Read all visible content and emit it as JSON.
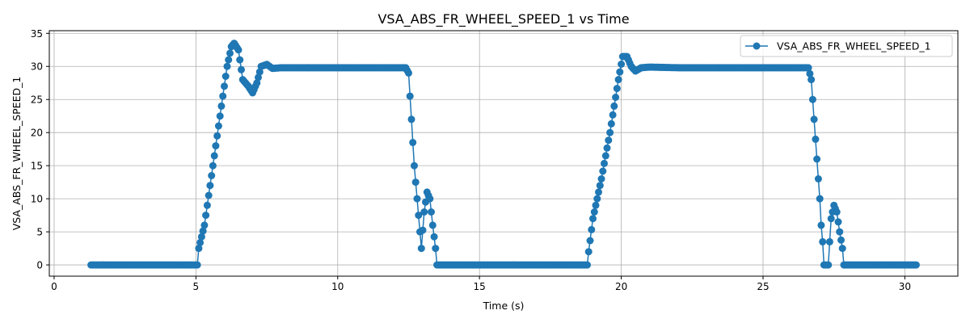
{
  "chart_data": {
    "type": "line",
    "title": "VSA_ABS_FR_WHEEL_SPEED_1 vs Time",
    "xlabel": "Time (s)",
    "ylabel": "VSA_ABS_FR_WHEEL_SPEED_1",
    "xlim": [
      -0.17,
      31.87
    ],
    "ylim": [
      -1.7,
      35.4
    ],
    "xticks": [
      0,
      5,
      10,
      15,
      20,
      25,
      30
    ],
    "yticks": [
      0,
      5,
      10,
      15,
      20,
      25,
      30,
      35
    ],
    "grid": true,
    "legend_position": "top-right",
    "colors": {
      "series": "#1f77b4",
      "grid": "#b0b0b0",
      "axes": "#000000"
    },
    "series": [
      {
        "name": "VSA_ABS_FR_WHEEL_SPEED_1",
        "marker": "circle",
        "points": [
          [
            1.3,
            0
          ],
          [
            5.05,
            0
          ],
          [
            5.1,
            2.5
          ],
          [
            5.3,
            6
          ],
          [
            5.6,
            15
          ],
          [
            5.9,
            24
          ],
          [
            6.1,
            30
          ],
          [
            6.25,
            33
          ],
          [
            6.35,
            33.5
          ],
          [
            6.5,
            32.5
          ],
          [
            6.65,
            28
          ],
          [
            6.85,
            27
          ],
          [
            7.0,
            26
          ],
          [
            7.15,
            27.5
          ],
          [
            7.3,
            30
          ],
          [
            7.5,
            30.3
          ],
          [
            7.7,
            29.7
          ],
          [
            8.0,
            29.8
          ],
          [
            9.0,
            29.8
          ],
          [
            12.4,
            29.8
          ],
          [
            12.5,
            29
          ],
          [
            12.6,
            22
          ],
          [
            12.7,
            15
          ],
          [
            12.8,
            10
          ],
          [
            12.9,
            5
          ],
          [
            12.95,
            2.5
          ],
          [
            13.05,
            8
          ],
          [
            13.15,
            11
          ],
          [
            13.25,
            10
          ],
          [
            13.35,
            6
          ],
          [
            13.45,
            2.5
          ],
          [
            13.5,
            0
          ],
          [
            16.0,
            0
          ],
          [
            18.8,
            0
          ],
          [
            18.85,
            2
          ],
          [
            19.0,
            7
          ],
          [
            19.3,
            13
          ],
          [
            19.6,
            20
          ],
          [
            19.9,
            28
          ],
          [
            20.05,
            31.5
          ],
          [
            20.2,
            31.5
          ],
          [
            20.35,
            30
          ],
          [
            20.5,
            29.3
          ],
          [
            20.7,
            29.8
          ],
          [
            21.0,
            29.9
          ],
          [
            22.0,
            29.8
          ],
          [
            26.6,
            29.8
          ],
          [
            26.7,
            28
          ],
          [
            26.8,
            22
          ],
          [
            26.9,
            16
          ],
          [
            27.0,
            10
          ],
          [
            27.05,
            6
          ],
          [
            27.1,
            3.5
          ],
          [
            27.15,
            0
          ],
          [
            27.3,
            0
          ],
          [
            27.4,
            7
          ],
          [
            27.5,
            9
          ],
          [
            27.6,
            8
          ],
          [
            27.7,
            5
          ],
          [
            27.8,
            2.5
          ],
          [
            27.85,
            0
          ],
          [
            29.0,
            0
          ],
          [
            30.4,
            0
          ]
        ]
      }
    ]
  }
}
